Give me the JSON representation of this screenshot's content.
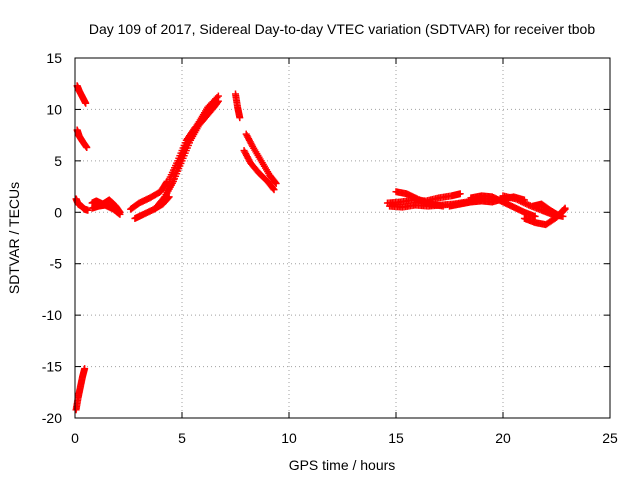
{
  "chart_data": {
    "type": "scatter",
    "title": "Day 109 of 2017, Sidereal Day-to-day VTEC variation (SDTVAR) for receiver tbob",
    "xlabel": "GPS time / hours",
    "ylabel": "SDTVAR / TECUs",
    "xlim": [
      0,
      25
    ],
    "ylim": [
      -20,
      15
    ],
    "xticks": [
      0,
      5,
      10,
      15,
      20,
      25
    ],
    "yticks": [
      -20,
      -15,
      -10,
      -5,
      0,
      5,
      10,
      15
    ],
    "grid": true,
    "marker": "+",
    "color": "#ff0000",
    "series": [
      {
        "name": "SDTVAR",
        "segments": [
          {
            "x": [
              0.05,
              0.15,
              0.3,
              0.45,
              0.6
            ],
            "y": [
              1.3,
              0.8,
              0.6,
              0.3,
              0.2
            ]
          },
          {
            "x": [
              0.1,
              0.2,
              0.35,
              0.5
            ],
            "y": [
              12.3,
              11.8,
              11.2,
              10.6
            ]
          },
          {
            "x": [
              0.1,
              0.2,
              0.35,
              0.55
            ],
            "y": [
              8.0,
              7.4,
              6.9,
              6.3
            ]
          },
          {
            "x": [
              0.05,
              0.15,
              0.25,
              0.35,
              0.45
            ],
            "y": [
              -19.2,
              -18.0,
              -17.0,
              -16.0,
              -15.2
            ]
          },
          {
            "x": [
              0.8,
              1.0,
              1.3,
              1.6,
              1.9,
              2.1
            ],
            "y": [
              0.9,
              1.1,
              0.8,
              1.2,
              0.6,
              0.0
            ]
          },
          {
            "x": [
              0.8,
              1.1,
              1.4,
              1.8,
              2.1
            ],
            "y": [
              0.4,
              0.6,
              0.7,
              0.3,
              -0.2
            ]
          },
          {
            "x": [
              2.6,
              3.0,
              3.5,
              4.0,
              4.3
            ],
            "y": [
              0.3,
              0.9,
              1.4,
              2.0,
              3.0
            ]
          },
          {
            "x": [
              2.8,
              3.2,
              3.7,
              4.1,
              4.4
            ],
            "y": [
              -0.6,
              -0.2,
              0.3,
              0.8,
              1.5
            ]
          },
          {
            "x": [
              3.8,
              4.2,
              4.6,
              5.0,
              5.4,
              5.8,
              6.2,
              6.6
            ],
            "y": [
              0.5,
              1.5,
              3.0,
              5.0,
              7.0,
              8.5,
              9.5,
              10.5
            ]
          },
          {
            "x": [
              4.2,
              4.6,
              5.0,
              5.4,
              5.8,
              6.2,
              6.7
            ],
            "y": [
              1.5,
              3.2,
              5.5,
              7.5,
              8.8,
              10.2,
              11.3
            ]
          },
          {
            "x": [
              4.4,
              4.8,
              5.2,
              5.6,
              6.0,
              6.4,
              6.7
            ],
            "y": [
              3.2,
              5.0,
              7.0,
              8.2,
              9.0,
              10.0,
              10.8
            ]
          },
          {
            "x": [
              7.5,
              7.6,
              7.7
            ],
            "y": [
              11.5,
              10.2,
              9.2
            ]
          },
          {
            "x": [
              8.0,
              8.3,
              8.7,
              9.1,
              9.4
            ],
            "y": [
              7.6,
              6.4,
              5.0,
              3.6,
              2.8
            ]
          },
          {
            "x": [
              7.9,
              8.2,
              8.6,
              9.0,
              9.3
            ],
            "y": [
              6.0,
              4.8,
              3.8,
              3.0,
              2.2
            ]
          },
          {
            "x": [
              14.6,
              15.2,
              15.8,
              16.4,
              17.0,
              17.6,
              18.0
            ],
            "y": [
              0.9,
              1.0,
              1.2,
              1.1,
              1.4,
              1.6,
              1.8
            ]
          },
          {
            "x": [
              15.0,
              15.5,
              16.0,
              16.6,
              17.2
            ],
            "y": [
              2.0,
              1.8,
              1.3,
              0.8,
              0.6
            ]
          },
          {
            "x": [
              14.7,
              15.3,
              15.9,
              16.5,
              17.1,
              17.7,
              18.3,
              19.0
            ],
            "y": [
              0.6,
              0.5,
              0.7,
              0.6,
              0.7,
              0.8,
              1.0,
              1.3
            ]
          },
          {
            "x": [
              17.5,
              18.0,
              18.5,
              19.0,
              19.5,
              20.0,
              20.5,
              21.0
            ],
            "y": [
              0.6,
              0.8,
              1.0,
              1.1,
              1.0,
              1.3,
              1.5,
              1.2
            ]
          },
          {
            "x": [
              18.5,
              19.0,
              19.5,
              20.0,
              20.5,
              21.0,
              21.5
            ],
            "y": [
              1.4,
              1.6,
              1.5,
              1.0,
              0.5,
              0.0,
              -0.4
            ]
          },
          {
            "x": [
              20.0,
              20.6,
              21.2,
              21.8,
              22.3,
              22.8
            ],
            "y": [
              1.6,
              1.3,
              0.7,
              0.2,
              -0.2,
              -0.4
            ]
          },
          {
            "x": [
              21.0,
              21.5,
              22.0,
              22.5,
              22.9
            ],
            "y": [
              -0.6,
              -1.0,
              -1.2,
              -0.5,
              0.4
            ]
          },
          {
            "x": [
              21.4,
              21.8,
              22.2,
              22.6,
              22.9
            ],
            "y": [
              0.6,
              0.8,
              0.2,
              -0.3,
              0.3
            ]
          }
        ]
      }
    ]
  }
}
